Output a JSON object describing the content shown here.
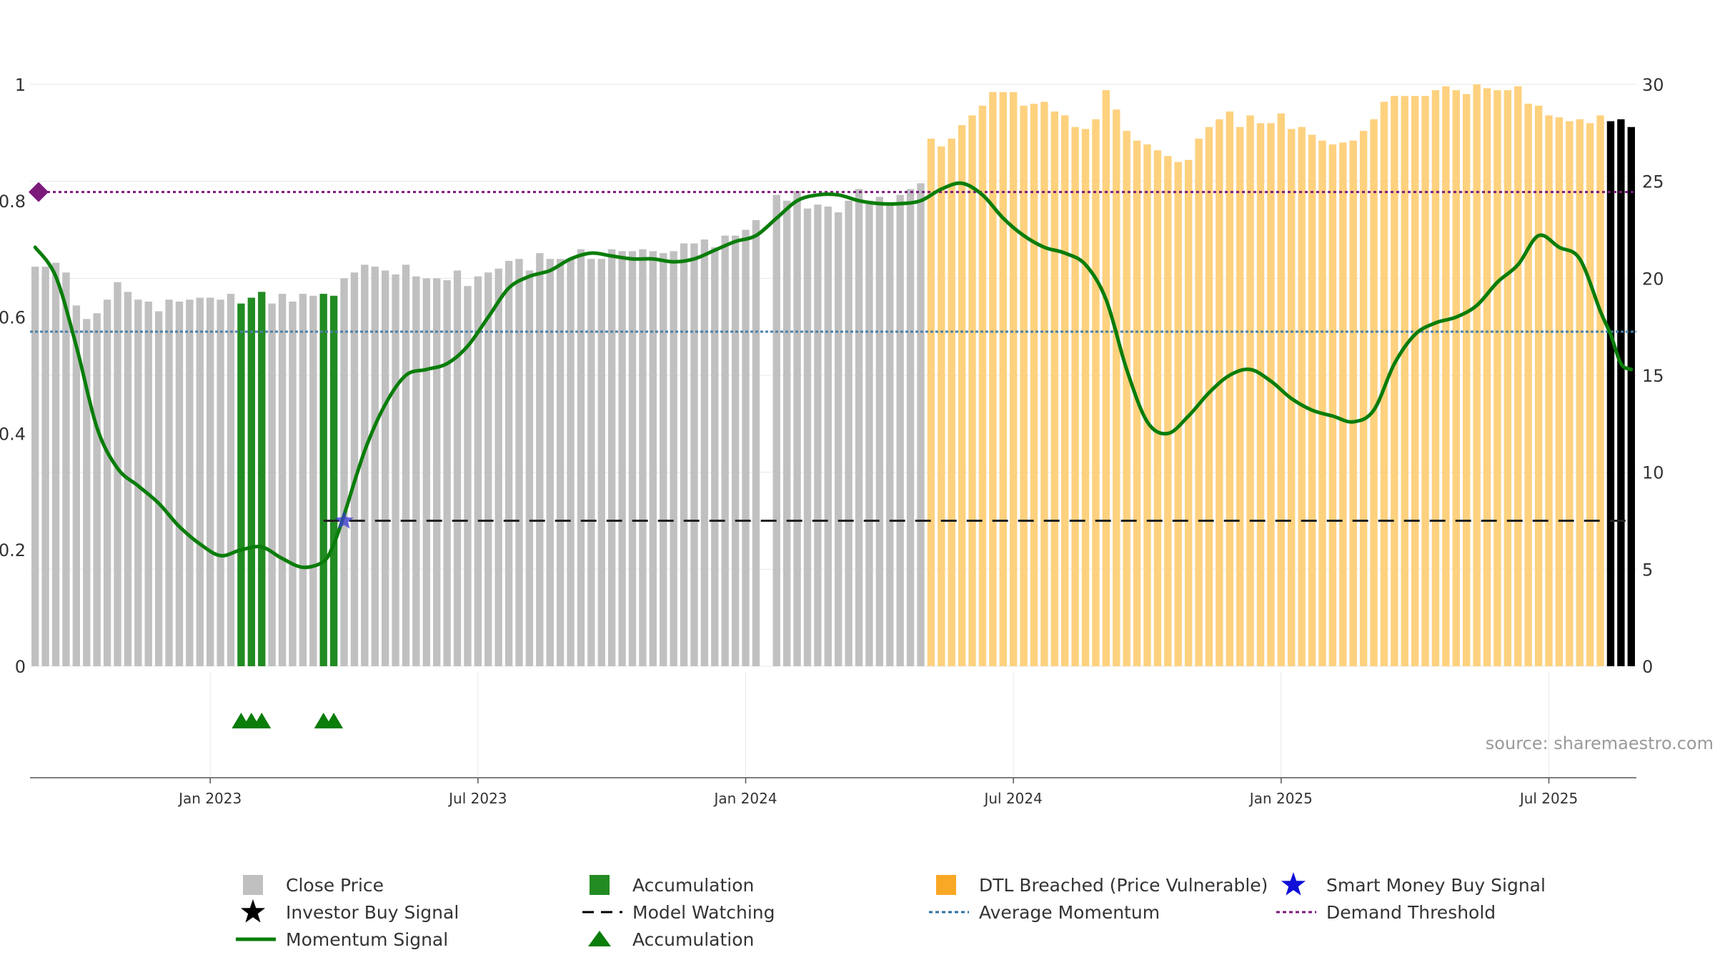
{
  "colors": {
    "close": "#c0c0c0",
    "accumulation": "#228b22",
    "dtl": "#fdd17e",
    "momentum": "#0a7d0a",
    "avg_momentum": "#4a7fa8",
    "demand": "#7b1a7b",
    "watching": "#222222",
    "smart_money_star": "#3b3bd4",
    "grid": "#e8e8e8"
  },
  "source": "source: sharemaestro.com",
  "legend": [
    {
      "label": "Close Price",
      "symbol": "gray-square-icon"
    },
    {
      "label": "Accumulation",
      "symbol": "green-square-icon"
    },
    {
      "label": "DTL Breached (Price Vulnerable)",
      "symbol": "orange-square-icon"
    },
    {
      "label": "Smart Money Buy Signal",
      "symbol": "blue-star-icon"
    },
    {
      "label": "Investor Buy Signal",
      "symbol": "black-star-icon"
    },
    {
      "label": "Model Watching",
      "symbol": "black-dashed-line-icon"
    },
    {
      "label": "Average Momentum",
      "symbol": "blue-dotted-line-icon"
    },
    {
      "label": "Demand Threshold",
      "symbol": "purple-dotted-line-icon"
    },
    {
      "label": "Momentum Signal",
      "symbol": "green-line-icon"
    },
    {
      "label": "Accumulation",
      "symbol": "green-triangle-icon"
    }
  ],
  "chart_data": {
    "type": "bar",
    "xlabel": "",
    "left_axis": {
      "ticks": [
        "0",
        "0.2",
        "0.4",
        "0.6",
        "0.8",
        "1"
      ],
      "range": [
        0,
        1
      ]
    },
    "right_axis": {
      "ticks": [
        "0",
        "5",
        "10",
        "15",
        "20",
        "25",
        "30"
      ],
      "range": [
        0,
        30
      ]
    },
    "x_ticks": [
      "Jan 2023",
      "Jul 2023",
      "Jan 2024",
      "Jul 2024",
      "Jan 2025",
      "Jul 2025"
    ],
    "x_tick_weeks": [
      17,
      43,
      69,
      95,
      121,
      147
    ],
    "bars": {
      "weeks": [
        0,
        1,
        2,
        3,
        4,
        5,
        6,
        7,
        8,
        9,
        10,
        11,
        12,
        13,
        14,
        15,
        16,
        17,
        18,
        19,
        20,
        21,
        22,
        23,
        24,
        25,
        26,
        27,
        28,
        29,
        30,
        31,
        32,
        33,
        34,
        35,
        36,
        37,
        38,
        39,
        40,
        41,
        42,
        43,
        44,
        45,
        46,
        47,
        48,
        49,
        50,
        51,
        52,
        53,
        54,
        55,
        56,
        57,
        58,
        59,
        60,
        61,
        62,
        63,
        64,
        65,
        66,
        67,
        68,
        69,
        70,
        71,
        72,
        73,
        74,
        75,
        76,
        77,
        78,
        79,
        80,
        81,
        82,
        83,
        84,
        85,
        86,
        87,
        88,
        89,
        90,
        91,
        92,
        93,
        94,
        95,
        96,
        97,
        98,
        99,
        100,
        101,
        102,
        103,
        104,
        105,
        106,
        107,
        108,
        109,
        110,
        111,
        112,
        113,
        114,
        115,
        116,
        117,
        118,
        119,
        120,
        121,
        122,
        123,
        124,
        125,
        126,
        127,
        128,
        129,
        130,
        131,
        132,
        133,
        134,
        135,
        136,
        137,
        138,
        139,
        140,
        141,
        142,
        143,
        144,
        145,
        146,
        147,
        148,
        149,
        150,
        151,
        152,
        153,
        154,
        155
      ],
      "close": [
        20.6,
        20.6,
        20.8,
        20.3,
        18.6,
        17.9,
        18.2,
        18.9,
        19.8,
        19.3,
        18.9,
        18.8,
        18.3,
        18.9,
        18.8,
        18.9,
        19.0,
        19.0,
        18.9,
        19.2,
        18.7,
        19.0,
        19.3,
        18.7,
        19.2,
        18.8,
        19.2,
        19.1,
        19.2,
        19.1,
        20.0,
        20.3,
        20.7,
        20.6,
        20.4,
        20.2,
        20.7,
        20.1,
        20.0,
        20.0,
        19.9,
        20.4,
        19.6,
        20.1,
        20.3,
        20.5,
        20.9,
        21.0,
        20.4,
        21.3,
        21.0,
        21.0,
        21.0,
        21.5,
        21.0,
        21.0,
        21.5,
        21.4,
        21.4,
        21.5,
        21.4,
        21.3,
        21.4,
        21.8,
        21.8,
        22.0,
        21.6,
        22.2,
        22.2,
        22.5,
        23.0,
        23.0,
        24.3,
        24.0,
        24.5,
        23.6,
        23.8,
        23.7,
        23.4,
        24.0,
        24.6,
        24.0,
        24.2,
        23.8,
        24.3,
        24.6,
        24.9,
        27.2,
        26.8,
        27.2,
        27.9,
        28.4,
        28.9,
        29.6,
        29.6,
        29.6,
        28.9,
        29.0,
        29.1,
        28.6,
        28.4,
        27.8,
        27.7,
        28.2,
        29.7,
        28.7,
        27.6,
        27.1,
        26.9,
        26.6,
        26.3,
        26.0,
        26.1,
        27.2,
        27.8,
        28.2,
        28.6,
        27.8,
        28.4,
        28.0,
        28.0,
        28.5,
        27.7,
        27.8,
        27.4,
        27.1,
        26.9,
        27.0,
        27.1,
        27.6,
        28.2,
        29.1,
        29.4,
        29.4,
        29.4,
        29.4,
        29.7,
        29.9,
        29.7,
        29.5,
        30.0,
        29.8,
        29.7,
        29.7,
        29.9,
        29.0,
        28.9,
        28.4,
        28.3,
        28.1,
        28.2,
        28.0,
        28.4,
        28.1,
        28.2,
        27.8
      ],
      "category": [
        "close",
        "close",
        "close",
        "close",
        "close",
        "close",
        "close",
        "close",
        "close",
        "close",
        "close",
        "close",
        "close",
        "close",
        "close",
        "close",
        "close",
        "close",
        "close",
        "close",
        "acc",
        "acc",
        "acc",
        "close",
        "close",
        "close",
        "close",
        "close",
        "acc",
        "acc",
        "close",
        "close",
        "close",
        "close",
        "close",
        "close",
        "close",
        "close",
        "close",
        "close",
        "close",
        "close",
        "close",
        "close",
        "close",
        "close",
        "close",
        "close",
        "close",
        "close",
        "close",
        "close",
        "close",
        "close",
        "close",
        "close",
        "close",
        "close",
        "close",
        "close",
        "close",
        "close",
        "close",
        "close",
        "close",
        "close",
        "close",
        "close",
        "close",
        "close",
        "close",
        "close",
        "close",
        "close",
        "close",
        "close",
        "close",
        "close",
        "close",
        "close",
        "close",
        "close",
        "close",
        "close",
        "close",
        "close",
        "close",
        "dtl",
        "dtl",
        "dtl",
        "dtl",
        "dtl",
        "dtl",
        "dtl",
        "dtl",
        "dtl",
        "dtl",
        "dtl",
        "dtl",
        "dtl",
        "dtl",
        "dtl",
        "dtl",
        "dtl",
        "dtl",
        "dtl",
        "dtl",
        "dtl",
        "dtl",
        "dtl",
        "dtl",
        "dtl",
        "dtl",
        "dtl",
        "dtl",
        "dtl",
        "dtl",
        "dtl",
        "dtl",
        "dtl",
        "dtl",
        "dtl",
        "dtl",
        "dtl",
        "dtl",
        "dtl",
        "dtl",
        "dtl",
        "dtl",
        "dtl",
        "dtl",
        "dtl",
        "dtl",
        "dtl",
        "dtl",
        "dtl",
        "dtl",
        "dtl",
        "dtl",
        "dtl",
        "dtl",
        "dtl",
        "dtl",
        "dtl",
        "dtl",
        "dtl",
        "dtl",
        "dtl",
        "dtl",
        "dtl",
        "dtl",
        "dtl",
        "dtl"
      ],
      "gap_weeks": [
        71
      ]
    },
    "momentum": {
      "weeks": [
        0,
        2,
        4,
        6,
        8,
        10,
        12,
        14,
        16,
        18,
        20,
        22,
        24,
        26,
        28,
        29,
        30,
        32,
        34,
        36,
        38,
        40,
        42,
        44,
        46,
        48,
        50,
        52,
        54,
        56,
        58,
        60,
        62,
        64,
        66,
        68,
        70,
        72,
        74,
        76,
        78,
        80,
        82,
        84,
        86,
        88,
        90,
        92,
        94,
        96,
        98,
        100,
        102,
        104,
        106,
        108,
        110,
        112,
        114,
        116,
        118,
        120,
        122,
        124,
        126,
        128,
        130,
        132,
        134,
        136,
        138,
        140,
        142,
        144,
        146,
        148,
        150,
        152,
        153,
        154,
        155
      ],
      "values": [
        0.72,
        0.67,
        0.55,
        0.41,
        0.34,
        0.31,
        0.28,
        0.24,
        0.21,
        0.19,
        0.2,
        0.205,
        0.185,
        0.17,
        0.18,
        0.21,
        0.26,
        0.37,
        0.45,
        0.5,
        0.51,
        0.52,
        0.55,
        0.6,
        0.65,
        0.67,
        0.68,
        0.7,
        0.71,
        0.705,
        0.7,
        0.7,
        0.695,
        0.7,
        0.715,
        0.73,
        0.74,
        0.77,
        0.8,
        0.81,
        0.81,
        0.8,
        0.795,
        0.795,
        0.8,
        0.82,
        0.83,
        0.81,
        0.77,
        0.74,
        0.72,
        0.71,
        0.69,
        0.63,
        0.51,
        0.42,
        0.4,
        0.43,
        0.47,
        0.5,
        0.51,
        0.49,
        0.46,
        0.44,
        0.43,
        0.42,
        0.44,
        0.52,
        0.57,
        0.59,
        0.6,
        0.62,
        0.66,
        0.69,
        0.74,
        0.72,
        0.7,
        0.61,
        0.57,
        0.52,
        0.51
      ]
    },
    "average_momentum": 0.575,
    "demand_threshold": 0.815,
    "model_watching": {
      "start_week": 28,
      "end_week": 155,
      "value": 0.25
    },
    "smart_money_buy_signal": {
      "week": 30,
      "value": 0.25
    },
    "accumulation_triangles_weeks": [
      20,
      21,
      22,
      28,
      29
    ]
  }
}
